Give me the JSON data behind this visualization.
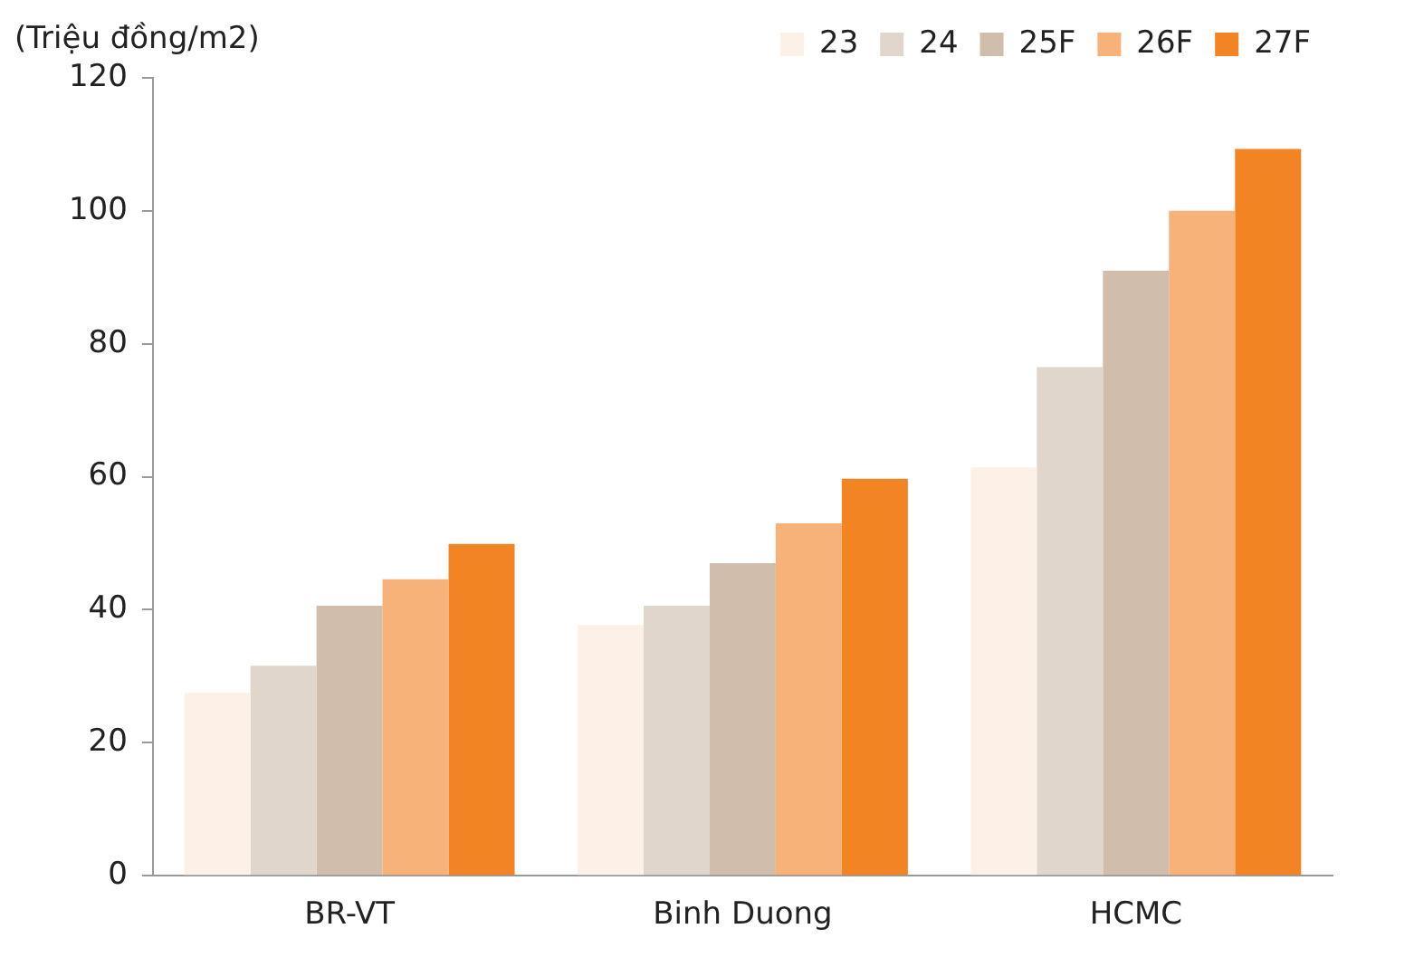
{
  "chart_data": {
    "type": "bar",
    "ylabel": "(Triệu đồng/m2)",
    "categories": [
      "BR-VT",
      "Binh Duong",
      "HCMC"
    ],
    "series": [
      {
        "name": "23",
        "color": "#fdf0e6",
        "values": [
          27.5,
          37.7,
          61.4
        ]
      },
      {
        "name": "24",
        "color": "#e0d6cc",
        "values": [
          31.6,
          40.6,
          76.5
        ]
      },
      {
        "name": "25F",
        "color": "#d1bdac",
        "values": [
          40.6,
          47,
          91
        ]
      },
      {
        "name": "26F",
        "color": "#f7b27a",
        "values": [
          44.6,
          53,
          100
        ]
      },
      {
        "name": "27F",
        "color": "#f38424",
        "values": [
          49.9,
          59.7,
          109.3
        ]
      }
    ],
    "ylim": [
      0,
      120
    ],
    "yticks": [
      0,
      20,
      40,
      60,
      80,
      100,
      120
    ],
    "grid": false,
    "legend": "top right"
  }
}
